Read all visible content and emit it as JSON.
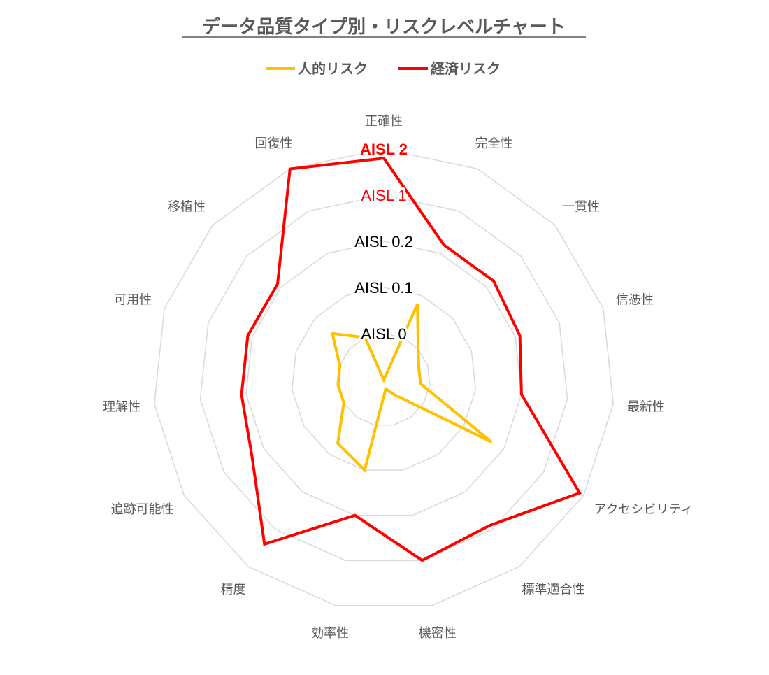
{
  "chart_data": {
    "type": "radar",
    "title": "データ品質タイプ別・リスクレベルチャート",
    "legend_position": "top",
    "axes": [
      "正確性",
      "完全性",
      "一貫性",
      "信憑性",
      "最新性",
      "アクセシビリティ",
      "標準適合性",
      "機密性",
      "効率性",
      "精度",
      "追跡可能性",
      "理解性",
      "可用性",
      "移植性",
      "回復性"
    ],
    "levels": [
      {
        "label": "AISL 0",
        "color": "#000000",
        "bold": false
      },
      {
        "label": "AISL 0.1",
        "color": "#000000",
        "bold": false
      },
      {
        "label": "AISL 0.2",
        "color": "#000000",
        "bold": false
      },
      {
        "label": "AISL 1",
        "color": "#ff0000",
        "bold": false
      },
      {
        "label": "AISL 2",
        "color": "#ff0000",
        "bold": true
      }
    ],
    "grid": true,
    "rlim": [
      0,
      5
    ],
    "series": [
      {
        "name": "人的リスク",
        "color": "#ffc000",
        "values": [
          0.0,
          1.8,
          1.0,
          0.8,
          0.8,
          2.7,
          0.4,
          0.2,
          2.0,
          1.7,
          1.0,
          1.0,
          1.0,
          1.5,
          1.0
        ]
      },
      {
        "name": "経済リスク",
        "color": "#ff0000",
        "values": [
          4.8,
          3.2,
          3.2,
          3.1,
          3.0,
          4.9,
          3.9,
          4.0,
          3.0,
          4.4,
          3.3,
          3.1,
          3.1,
          3.1,
          5.0
        ]
      }
    ]
  }
}
